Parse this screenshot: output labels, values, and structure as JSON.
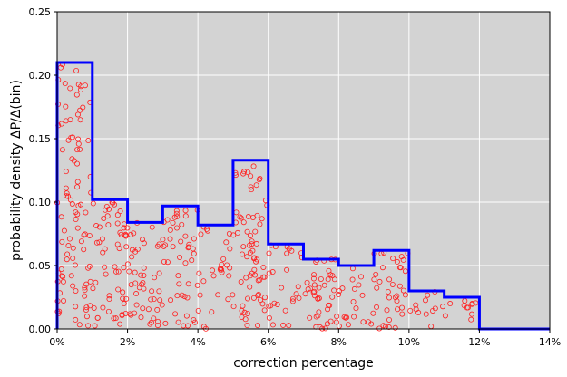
{
  "chart_data": {
    "type": "bar",
    "xlabel": "correction percentage",
    "ylabel": "probability density ΔP/Δ(bin)",
    "xlim": [
      0,
      0.14
    ],
    "ylim": [
      0,
      0.25
    ],
    "grid": true,
    "x_ticks": [
      {
        "value": 0.0,
        "label": "0%"
      },
      {
        "value": 0.02,
        "label": "2%"
      },
      {
        "value": 0.04,
        "label": "4%"
      },
      {
        "value": 0.06,
        "label": "6%"
      },
      {
        "value": 0.08,
        "label": "8%"
      },
      {
        "value": 0.1,
        "label": "10%"
      },
      {
        "value": 0.12,
        "label": "12%"
      },
      {
        "value": 0.14,
        "label": "14%"
      }
    ],
    "y_ticks": [
      {
        "value": 0.0,
        "label": "0.00"
      },
      {
        "value": 0.05,
        "label": "0.05"
      },
      {
        "value": 0.1,
        "label": "0.10"
      },
      {
        "value": 0.15,
        "label": "0.15"
      },
      {
        "value": 0.2,
        "label": "0.20"
      },
      {
        "value": 0.25,
        "label": "0.25"
      }
    ],
    "histogram": {
      "bin_edges": [
        0,
        0.01,
        0.02,
        0.03,
        0.04,
        0.05,
        0.06,
        0.07,
        0.08,
        0.09,
        0.1,
        0.11,
        0.12,
        0.14
      ],
      "density": [
        0.21,
        0.102,
        0.084,
        0.097,
        0.082,
        0.133,
        0.067,
        0.055,
        0.05,
        0.062,
        0.03,
        0.025,
        0.0
      ],
      "color": "#0000ff"
    },
    "scatter": {
      "marker": "open-circle",
      "color": "#ff2020",
      "note_count": 500
    },
    "colors": {
      "plot_background": "#d3d3d3",
      "grid": "#ffffff"
    }
  }
}
